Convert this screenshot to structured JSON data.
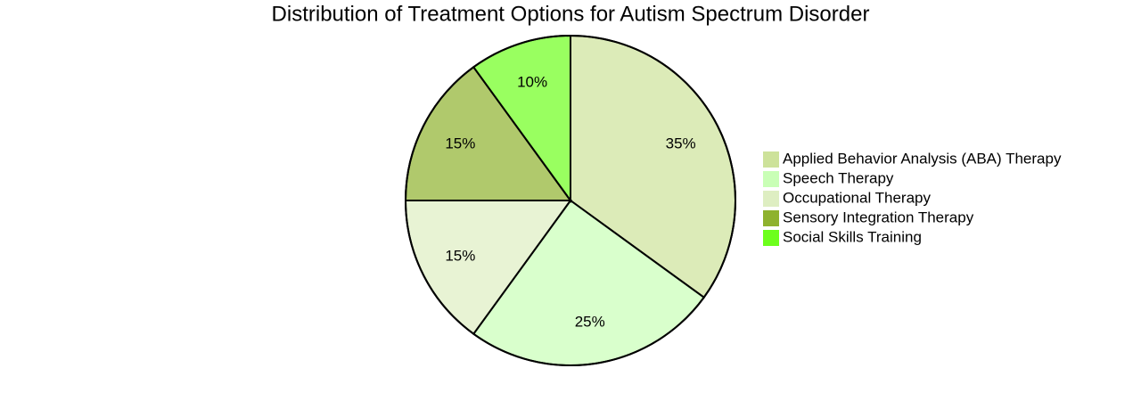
{
  "chart_data": {
    "type": "pie",
    "title": "Distribution of Treatment Options for Autism Spectrum Disorder",
    "categories": [
      "Applied Behavior Analysis (ABA) Therapy",
      "Speech Therapy",
      "Occupational Therapy",
      "Sensory Integration Therapy",
      "Social Skills Training"
    ],
    "values": [
      35,
      25,
      15,
      15,
      10
    ],
    "value_labels": [
      "35%",
      "25%",
      "15%",
      "15%",
      "10%"
    ],
    "colors": [
      "#cde29a",
      "#c9ffb6",
      "#deeec2",
      "#8eb22e",
      "#6dff1c"
    ]
  }
}
